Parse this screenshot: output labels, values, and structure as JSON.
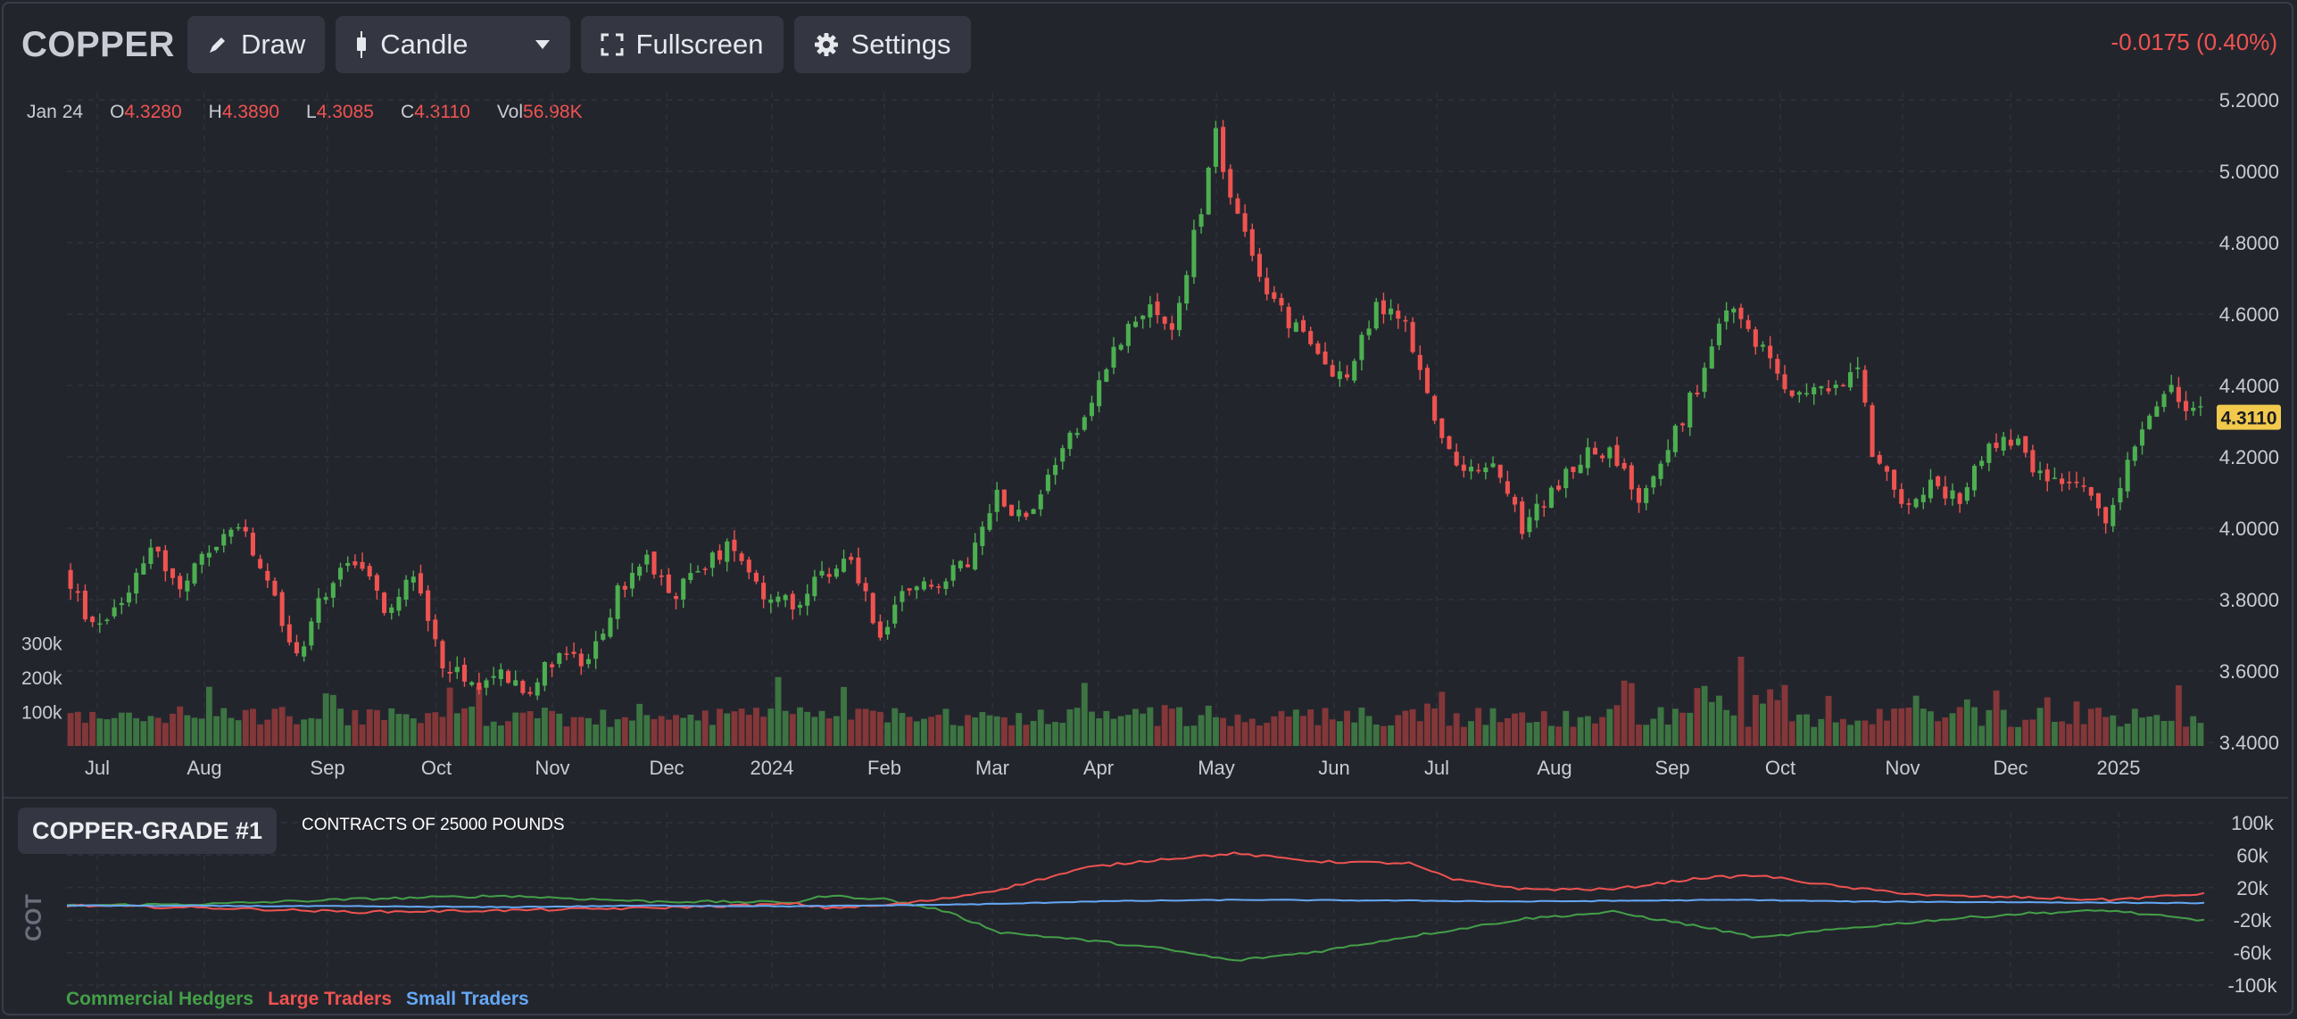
{
  "toolbar": {
    "symbol": "COPPER",
    "draw_label": "Draw",
    "candle_label": "Candle",
    "fullscreen_label": "Fullscreen",
    "settings_label": "Settings"
  },
  "change": "-0.0175 (0.40%)",
  "ohlc": {
    "date": "Jan 24",
    "o_label": "O",
    "o": "4.3280",
    "h_label": "H",
    "h": "4.3890",
    "l_label": "L",
    "l": "4.3085",
    "c_label": "C",
    "c": "4.3110",
    "vol_label": "Vol",
    "vol": "56.98K"
  },
  "colors": {
    "up": "#4caf50",
    "down": "#ef5350",
    "last_price_bg": "#f2c94c",
    "commercial": "#43a047",
    "large": "#ef5350",
    "small": "#64a8f5",
    "background": "#23252d"
  },
  "price_axis": {
    "ticks": [
      "5.2000",
      "5.0000",
      "4.8000",
      "4.6000",
      "4.4000",
      "4.2000",
      "4.0000",
      "3.8000",
      "3.6000",
      "3.4000"
    ],
    "min": 3.4,
    "max": 5.2,
    "last_price": "4.3110"
  },
  "volume_axis": {
    "ticks": [
      "300k",
      "200k",
      "100k"
    ]
  },
  "time_axis": {
    "labels": [
      "Jul",
      "Aug",
      "Sep",
      "Oct",
      "Nov",
      "Dec",
      "2024",
      "Feb",
      "Mar",
      "Apr",
      "May",
      "Jun",
      "Jul",
      "Aug",
      "Sep",
      "Oct",
      "Nov",
      "Dec",
      "2025"
    ]
  },
  "price_path": [
    [
      0,
      3.88
    ],
    [
      4,
      3.72
    ],
    [
      8,
      3.8
    ],
    [
      12,
      3.96
    ],
    [
      16,
      3.82
    ],
    [
      20,
      3.94
    ],
    [
      24,
      4.01
    ],
    [
      28,
      3.84
    ],
    [
      32,
      3.64
    ],
    [
      36,
      3.83
    ],
    [
      40,
      3.92
    ],
    [
      44,
      3.78
    ],
    [
      48,
      3.86
    ],
    [
      52,
      3.63
    ],
    [
      56,
      3.56
    ],
    [
      60,
      3.6
    ],
    [
      64,
      3.55
    ],
    [
      68,
      3.66
    ],
    [
      72,
      3.61
    ],
    [
      76,
      3.82
    ],
    [
      80,
      3.91
    ],
    [
      84,
      3.82
    ],
    [
      88,
      3.9
    ],
    [
      92,
      3.96
    ],
    [
      96,
      3.82
    ],
    [
      100,
      3.78
    ],
    [
      104,
      3.86
    ],
    [
      108,
      3.92
    ],
    [
      112,
      3.7
    ],
    [
      116,
      3.85
    ],
    [
      120,
      3.85
    ],
    [
      124,
      3.9
    ],
    [
      128,
      4.1
    ],
    [
      132,
      4.02
    ],
    [
      136,
      4.2
    ],
    [
      140,
      4.32
    ],
    [
      144,
      4.5
    ],
    [
      148,
      4.62
    ],
    [
      152,
      4.55
    ],
    [
      156,
      4.9
    ],
    [
      158,
      5.12
    ],
    [
      160,
      4.92
    ],
    [
      164,
      4.7
    ],
    [
      168,
      4.58
    ],
    [
      172,
      4.48
    ],
    [
      176,
      4.42
    ],
    [
      180,
      4.62
    ],
    [
      184,
      4.58
    ],
    [
      188,
      4.3
    ],
    [
      192,
      4.14
    ],
    [
      196,
      4.18
    ],
    [
      200,
      4.0
    ],
    [
      204,
      4.1
    ],
    [
      208,
      4.2
    ],
    [
      212,
      4.22
    ],
    [
      216,
      4.08
    ],
    [
      220,
      4.22
    ],
    [
      224,
      4.4
    ],
    [
      228,
      4.62
    ],
    [
      232,
      4.52
    ],
    [
      236,
      4.4
    ],
    [
      240,
      4.38
    ],
    [
      244,
      4.42
    ],
    [
      246,
      4.46
    ],
    [
      248,
      4.22
    ],
    [
      252,
      4.08
    ],
    [
      256,
      4.12
    ],
    [
      260,
      4.08
    ],
    [
      264,
      4.25
    ],
    [
      268,
      4.24
    ],
    [
      272,
      4.12
    ],
    [
      276,
      4.14
    ],
    [
      280,
      4.02
    ],
    [
      284,
      4.25
    ],
    [
      288,
      4.4
    ],
    [
      292,
      4.32
    ]
  ],
  "cot": {
    "badge": "COPPER-GRADE #1",
    "subtitle": "CONTRACTS OF 25000 POUNDS",
    "section_label": "COT",
    "axis_ticks": [
      "100k",
      "60k",
      "20k",
      "-20k",
      "-60k",
      "-100k"
    ],
    "legend": [
      "Commercial Hedgers",
      "Large Traders",
      "Small Traders"
    ],
    "commercial": [
      [
        0,
        -2
      ],
      [
        20,
        0
      ],
      [
        40,
        6
      ],
      [
        60,
        10
      ],
      [
        80,
        3
      ],
      [
        100,
        2
      ],
      [
        104,
        10
      ],
      [
        112,
        6
      ],
      [
        120,
        -8
      ],
      [
        128,
        -35
      ],
      [
        140,
        -45
      ],
      [
        150,
        -55
      ],
      [
        160,
        -70
      ],
      [
        172,
        -58
      ],
      [
        184,
        -40
      ],
      [
        190,
        -32
      ],
      [
        200,
        -18
      ],
      [
        212,
        -10
      ],
      [
        224,
        -28
      ],
      [
        232,
        -42
      ],
      [
        244,
        -30
      ],
      [
        256,
        -20
      ],
      [
        268,
        -12
      ],
      [
        280,
        -8
      ],
      [
        292,
        -20
      ]
    ],
    "large": [
      [
        0,
        -2
      ],
      [
        20,
        -5
      ],
      [
        40,
        -10
      ],
      [
        60,
        -8
      ],
      [
        80,
        -5
      ],
      [
        100,
        0
      ],
      [
        104,
        -5
      ],
      [
        112,
        -2
      ],
      [
        120,
        6
      ],
      [
        128,
        18
      ],
      [
        140,
        45
      ],
      [
        150,
        55
      ],
      [
        160,
        62
      ],
      [
        172,
        52
      ],
      [
        184,
        50
      ],
      [
        190,
        30
      ],
      [
        200,
        18
      ],
      [
        212,
        18
      ],
      [
        224,
        32
      ],
      [
        232,
        35
      ],
      [
        244,
        20
      ],
      [
        256,
        10
      ],
      [
        268,
        8
      ],
      [
        280,
        5
      ],
      [
        292,
        12
      ]
    ],
    "small": [
      [
        0,
        -2
      ],
      [
        40,
        -3
      ],
      [
        60,
        -4
      ],
      [
        80,
        -2
      ],
      [
        100,
        -3
      ],
      [
        120,
        -1
      ],
      [
        128,
        0
      ],
      [
        140,
        3
      ],
      [
        160,
        5
      ],
      [
        184,
        4
      ],
      [
        200,
        3
      ],
      [
        230,
        5
      ],
      [
        244,
        3
      ],
      [
        268,
        2
      ],
      [
        292,
        1
      ]
    ]
  }
}
